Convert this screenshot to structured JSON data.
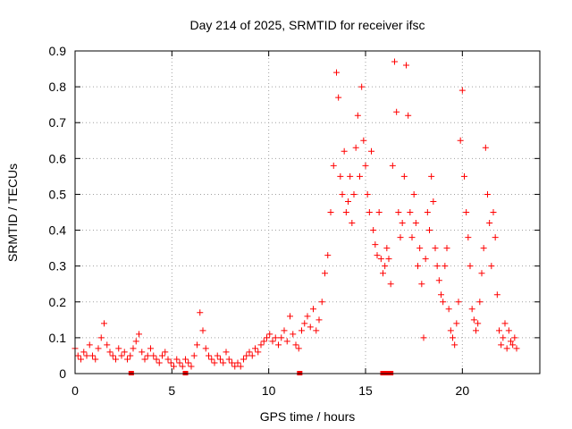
{
  "chart_data": {
    "type": "scatter",
    "title": "Day 214 of 2025, SRMTID for receiver ifsc",
    "xlabel": "GPS time / hours",
    "ylabel": "SRMTID / TECUs",
    "xlim": [
      0,
      24
    ],
    "ylim": [
      0,
      0.9
    ],
    "x_ticks": [
      "0",
      "5",
      "10",
      "15",
      "20"
    ],
    "x_tick_values": [
      0,
      5,
      10,
      15,
      20
    ],
    "y_ticks": [
      "0",
      "0.1",
      "0.2",
      "0.3",
      "0.4",
      "0.5",
      "0.6",
      "0.7",
      "0.8",
      "0.9"
    ],
    "y_tick_values": [
      0,
      0.1,
      0.2,
      0.3,
      0.4,
      0.5,
      0.6,
      0.7,
      0.8,
      0.9
    ],
    "grid": true,
    "marker": "+",
    "color": "#ff0000",
    "series": [
      {
        "name": "SRMTID",
        "points": [
          [
            0.0,
            0.07
          ],
          [
            0.15,
            0.05
          ],
          [
            0.3,
            0.04
          ],
          [
            0.45,
            0.06
          ],
          [
            0.6,
            0.05
          ],
          [
            0.75,
            0.08
          ],
          [
            0.9,
            0.05
          ],
          [
            1.05,
            0.04
          ],
          [
            1.2,
            0.07
          ],
          [
            1.35,
            0.1
          ],
          [
            1.5,
            0.14
          ],
          [
            1.65,
            0.08
          ],
          [
            1.8,
            0.06
          ],
          [
            1.95,
            0.05
          ],
          [
            2.1,
            0.04
          ],
          [
            2.25,
            0.07
          ],
          [
            2.4,
            0.05
          ],
          [
            2.55,
            0.06
          ],
          [
            2.7,
            0.04
          ],
          [
            2.85,
            0.05
          ],
          [
            3.0,
            0.07
          ],
          [
            3.15,
            0.09
          ],
          [
            3.3,
            0.11
          ],
          [
            3.45,
            0.06
          ],
          [
            3.6,
            0.04
          ],
          [
            3.75,
            0.05
          ],
          [
            3.9,
            0.07
          ],
          [
            4.05,
            0.05
          ],
          [
            4.2,
            0.04
          ],
          [
            4.35,
            0.03
          ],
          [
            4.5,
            0.05
          ],
          [
            4.65,
            0.06
          ],
          [
            4.8,
            0.04
          ],
          [
            4.95,
            0.03
          ],
          [
            5.1,
            0.02
          ],
          [
            5.25,
            0.04
          ],
          [
            5.4,
            0.03
          ],
          [
            5.55,
            0.02
          ],
          [
            5.7,
            0.04
          ],
          [
            5.85,
            0.03
          ],
          [
            6.0,
            0.02
          ],
          [
            6.15,
            0.05
          ],
          [
            6.3,
            0.08
          ],
          [
            6.45,
            0.17
          ],
          [
            6.6,
            0.12
          ],
          [
            6.75,
            0.07
          ],
          [
            6.9,
            0.05
          ],
          [
            7.05,
            0.04
          ],
          [
            7.2,
            0.03
          ],
          [
            7.35,
            0.05
          ],
          [
            7.5,
            0.04
          ],
          [
            7.65,
            0.03
          ],
          [
            7.8,
            0.06
          ],
          [
            7.95,
            0.04
          ],
          [
            8.1,
            0.03
          ],
          [
            8.25,
            0.02
          ],
          [
            8.4,
            0.03
          ],
          [
            8.55,
            0.02
          ],
          [
            8.7,
            0.04
          ],
          [
            8.85,
            0.05
          ],
          [
            9.0,
            0.06
          ],
          [
            9.15,
            0.05
          ],
          [
            9.3,
            0.07
          ],
          [
            9.45,
            0.06
          ],
          [
            9.6,
            0.08
          ],
          [
            9.75,
            0.09
          ],
          [
            9.9,
            0.1
          ],
          [
            10.05,
            0.11
          ],
          [
            10.2,
            0.09
          ],
          [
            10.35,
            0.1
          ],
          [
            10.5,
            0.08
          ],
          [
            10.65,
            0.1
          ],
          [
            10.8,
            0.12
          ],
          [
            10.95,
            0.09
          ],
          [
            11.1,
            0.16
          ],
          [
            11.25,
            0.11
          ],
          [
            11.4,
            0.08
          ],
          [
            11.55,
            0.07
          ],
          [
            11.7,
            0.12
          ],
          [
            11.85,
            0.14
          ],
          [
            12.0,
            0.16
          ],
          [
            12.15,
            0.13
          ],
          [
            12.3,
            0.18
          ],
          [
            12.45,
            0.12
          ],
          [
            12.6,
            0.15
          ],
          [
            12.75,
            0.2
          ],
          [
            12.9,
            0.28
          ],
          [
            13.05,
            0.33
          ],
          [
            13.2,
            0.45
          ],
          [
            13.35,
            0.58
          ],
          [
            13.5,
            0.84
          ],
          [
            13.6,
            0.77
          ],
          [
            13.7,
            0.55
          ],
          [
            13.8,
            0.5
          ],
          [
            13.9,
            0.62
          ],
          [
            14.0,
            0.45
          ],
          [
            14.1,
            0.48
          ],
          [
            14.2,
            0.55
          ],
          [
            14.3,
            0.42
          ],
          [
            14.4,
            0.5
          ],
          [
            14.5,
            0.63
          ],
          [
            14.6,
            0.72
          ],
          [
            14.7,
            0.55
          ],
          [
            14.8,
            0.8
          ],
          [
            14.9,
            0.65
          ],
          [
            15.0,
            0.58
          ],
          [
            15.1,
            0.5
          ],
          [
            15.2,
            0.45
          ],
          [
            15.3,
            0.62
          ],
          [
            15.4,
            0.4
          ],
          [
            15.5,
            0.36
          ],
          [
            15.6,
            0.33
          ],
          [
            15.7,
            0.45
          ],
          [
            15.8,
            0.32
          ],
          [
            15.9,
            0.28
          ],
          [
            16.0,
            0.3
          ],
          [
            16.1,
            0.35
          ],
          [
            16.2,
            0.32
          ],
          [
            16.3,
            0.25
          ],
          [
            16.4,
            0.58
          ],
          [
            16.5,
            0.87
          ],
          [
            16.6,
            0.73
          ],
          [
            16.7,
            0.45
          ],
          [
            16.8,
            0.38
          ],
          [
            16.9,
            0.42
          ],
          [
            17.0,
            0.55
          ],
          [
            17.1,
            0.86
          ],
          [
            17.2,
            0.72
          ],
          [
            17.3,
            0.45
          ],
          [
            17.4,
            0.38
          ],
          [
            17.5,
            0.5
          ],
          [
            17.6,
            0.42
          ],
          [
            17.7,
            0.3
          ],
          [
            17.8,
            0.35
          ],
          [
            17.9,
            0.25
          ],
          [
            18.0,
            0.1
          ],
          [
            18.1,
            0.32
          ],
          [
            18.2,
            0.45
          ],
          [
            18.3,
            0.4
          ],
          [
            18.4,
            0.55
          ],
          [
            18.5,
            0.48
          ],
          [
            18.6,
            0.35
          ],
          [
            18.7,
            0.3
          ],
          [
            18.8,
            0.26
          ],
          [
            18.9,
            0.22
          ],
          [
            19.0,
            0.2
          ],
          [
            19.1,
            0.3
          ],
          [
            19.2,
            0.35
          ],
          [
            19.3,
            0.18
          ],
          [
            19.4,
            0.12
          ],
          [
            19.5,
            0.1
          ],
          [
            19.6,
            0.08
          ],
          [
            19.7,
            0.14
          ],
          [
            19.8,
            0.2
          ],
          [
            19.9,
            0.65
          ],
          [
            20.0,
            0.79
          ],
          [
            20.1,
            0.55
          ],
          [
            20.2,
            0.45
          ],
          [
            20.3,
            0.38
          ],
          [
            20.4,
            0.3
          ],
          [
            20.5,
            0.18
          ],
          [
            20.6,
            0.15
          ],
          [
            20.7,
            0.12
          ],
          [
            20.8,
            0.14
          ],
          [
            20.9,
            0.2
          ],
          [
            21.0,
            0.28
          ],
          [
            21.1,
            0.35
          ],
          [
            21.2,
            0.63
          ],
          [
            21.3,
            0.5
          ],
          [
            21.4,
            0.42
          ],
          [
            21.5,
            0.3
          ],
          [
            21.6,
            0.45
          ],
          [
            21.7,
            0.38
          ],
          [
            21.8,
            0.22
          ],
          [
            21.9,
            0.12
          ],
          [
            22.0,
            0.08
          ],
          [
            22.1,
            0.1
          ],
          [
            22.2,
            0.14
          ],
          [
            22.3,
            0.07
          ],
          [
            22.4,
            0.12
          ],
          [
            22.5,
            0.09
          ],
          [
            22.6,
            0.08
          ],
          [
            22.7,
            0.1
          ],
          [
            22.8,
            0.07
          ]
        ]
      }
    ],
    "zero_markers": [
      2.9,
      5.7,
      11.6,
      15.9,
      16.1,
      16.3
    ]
  }
}
